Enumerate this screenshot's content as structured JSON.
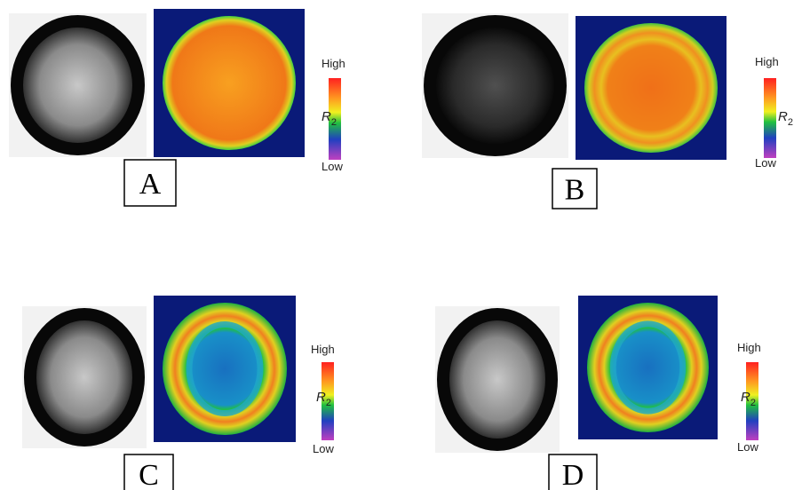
{
  "panels": [
    {
      "label": "A",
      "colorbar": {
        "high": "High",
        "low": "Low",
        "symbol": "R",
        "subscript": "2"
      }
    },
    {
      "label": "B",
      "colorbar": {
        "high": "High",
        "low": "Low",
        "symbol": "R",
        "subscript": "2"
      }
    },
    {
      "label": "C",
      "colorbar": {
        "high": "High",
        "low": "Low",
        "symbol": "R",
        "subscript": "2"
      }
    },
    {
      "label": "D",
      "colorbar": {
        "high": "High",
        "low": "Low",
        "symbol": "R",
        "subscript": "2"
      }
    }
  ]
}
